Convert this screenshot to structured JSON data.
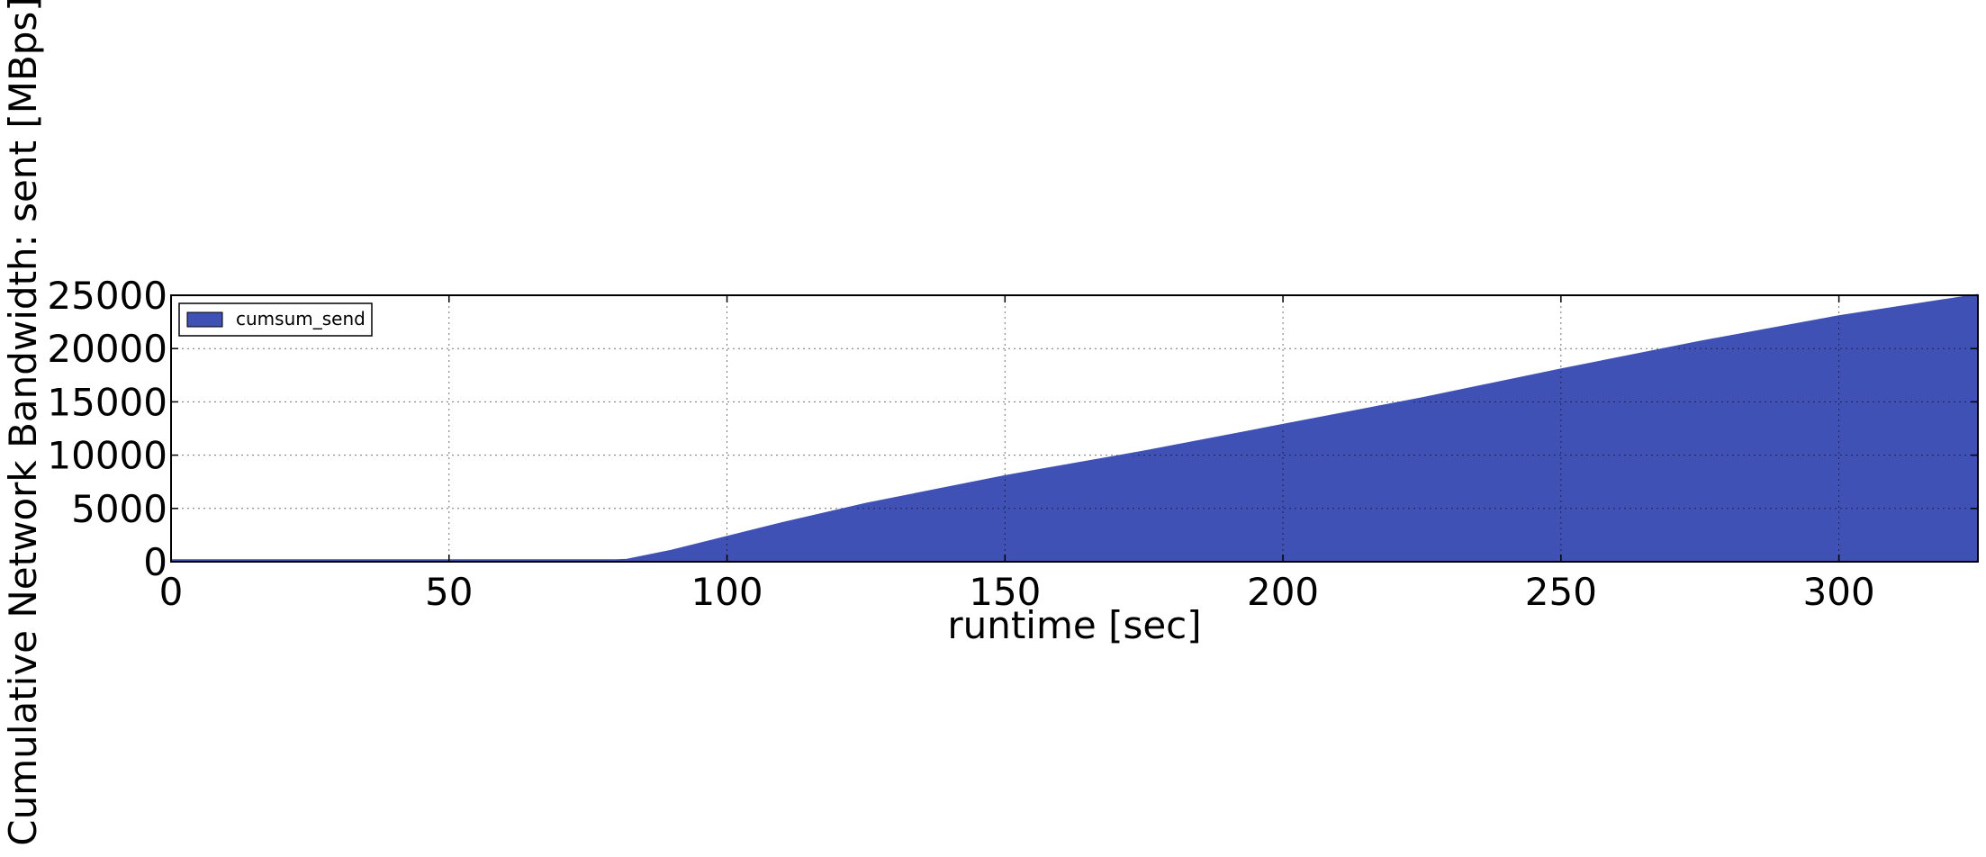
{
  "chart_data": {
    "type": "area",
    "title": "",
    "xlabel": "runtime [sec]",
    "ylabel": "Cumulative Network Bandwidth: sent [MBps]",
    "xlim": [
      0,
      325
    ],
    "ylim": [
      0,
      25000
    ],
    "x_ticks": [
      0,
      50,
      100,
      150,
      200,
      250,
      300
    ],
    "y_ticks": [
      0,
      5000,
      10000,
      15000,
      20000,
      25000
    ],
    "x_tick_labels": [
      "0",
      "50",
      "100",
      "150",
      "200",
      "250",
      "300"
    ],
    "y_tick_labels": [
      "0",
      "5000",
      "10000",
      "15000",
      "20000",
      "25000"
    ],
    "grid": true,
    "legend_position": "upper-left",
    "series": [
      {
        "name": "cumsum_send",
        "color": "#3f51b5",
        "x": [
          0,
          50,
          80,
          82,
          90,
          100,
          110,
          125,
          150,
          175,
          200,
          225,
          250,
          275,
          300,
          325
        ],
        "y": [
          100,
          100,
          100,
          150,
          1000,
          2300,
          3600,
          5400,
          8000,
          10300,
          12800,
          15300,
          18000,
          20600,
          23000,
          25200
        ]
      }
    ]
  }
}
